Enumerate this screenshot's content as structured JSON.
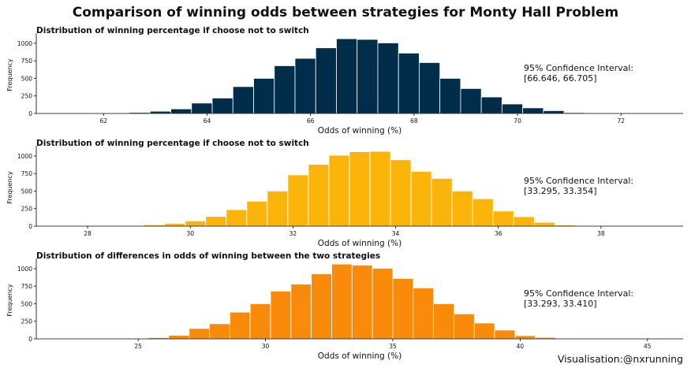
{
  "title": "Comparison of winning odds between strategies for Monty Hall Problem",
  "credit": "Visualisation:@nxrunning",
  "colors": {
    "series1": "#002d4a",
    "series2": "#fbb40a",
    "series3": "#f98a0a"
  },
  "chart_data": [
    {
      "type": "bar",
      "title": "Distribution of winning percentage if choose not to switch",
      "xlabel": "Odds of winning (%)",
      "ylabel": "Frequency",
      "xlim": [
        60.7,
        73.2
      ],
      "ylim": [
        0,
        1100
      ],
      "xticks": [
        62,
        64,
        66,
        68,
        70,
        72
      ],
      "yticks": [
        0,
        250,
        500,
        750,
        1000
      ],
      "bin_width": 0.4,
      "bin_starts": [
        62.1,
        62.5,
        62.9,
        63.3,
        63.7,
        64.1,
        64.5,
        64.9,
        65.3,
        65.7,
        66.1,
        66.5,
        66.9,
        67.3,
        67.7,
        68.1,
        68.5,
        68.9,
        69.3,
        69.7,
        70.1,
        70.5,
        70.9
      ],
      "values": [
        4,
        14,
        32,
        65,
        148,
        220,
        383,
        500,
        680,
        785,
        935,
        1065,
        1055,
        1005,
        860,
        725,
        500,
        355,
        235,
        135,
        80,
        40,
        12
      ],
      "annotation": [
        "95% Confidence Interval:",
        "[66.646, 66.705]"
      ]
    },
    {
      "type": "bar",
      "title": "Distribution of winning percentage if choose not to switch",
      "xlabel": "Odds of winning (%)",
      "ylabel": "Frequency",
      "xlim": [
        27,
        39.6
      ],
      "ylim": [
        0,
        1100
      ],
      "xticks": [
        28,
        30,
        32,
        34,
        36,
        38
      ],
      "yticks": [
        0,
        250,
        500,
        750,
        1000
      ],
      "bin_width": 0.4,
      "bin_starts": [
        28.7,
        29.1,
        29.5,
        29.9,
        30.3,
        30.7,
        31.1,
        31.5,
        31.9,
        32.3,
        32.7,
        33.1,
        33.5,
        33.9,
        34.3,
        34.7,
        35.1,
        35.5,
        35.9,
        36.3,
        36.7,
        37.1
      ],
      "values": [
        10,
        20,
        38,
        75,
        138,
        235,
        355,
        500,
        730,
        880,
        1010,
        1060,
        1065,
        945,
        780,
        680,
        500,
        390,
        215,
        135,
        55,
        15
      ],
      "annotation": [
        "95% Confidence Interval:",
        "[33.295, 33.354]"
      ]
    },
    {
      "type": "bar",
      "title": "Distribution of differences in odds of winning between the two strategies",
      "xlabel": "Odds of winning (%)",
      "ylabel": "Frequency",
      "xlim": [
        21,
        46.4
      ],
      "ylim": [
        0,
        1100
      ],
      "xticks": [
        25,
        30,
        35,
        40,
        45
      ],
      "yticks": [
        0,
        250,
        500,
        750,
        1000
      ],
      "bin_width": 0.8,
      "bin_starts": [
        24.6,
        25.4,
        26.2,
        27.0,
        27.8,
        28.6,
        29.4,
        30.2,
        31.0,
        31.8,
        32.6,
        33.4,
        34.2,
        35.0,
        35.8,
        36.6,
        37.4,
        38.2,
        39.0,
        39.8,
        40.6,
        41.4
      ],
      "values": [
        8,
        18,
        50,
        148,
        215,
        380,
        500,
        680,
        780,
        925,
        1065,
        1050,
        1005,
        860,
        725,
        500,
        355,
        225,
        125,
        45,
        20,
        6
      ],
      "annotation": [
        "95% Confidence Interval:",
        "[33.293, 33.410]"
      ]
    }
  ]
}
